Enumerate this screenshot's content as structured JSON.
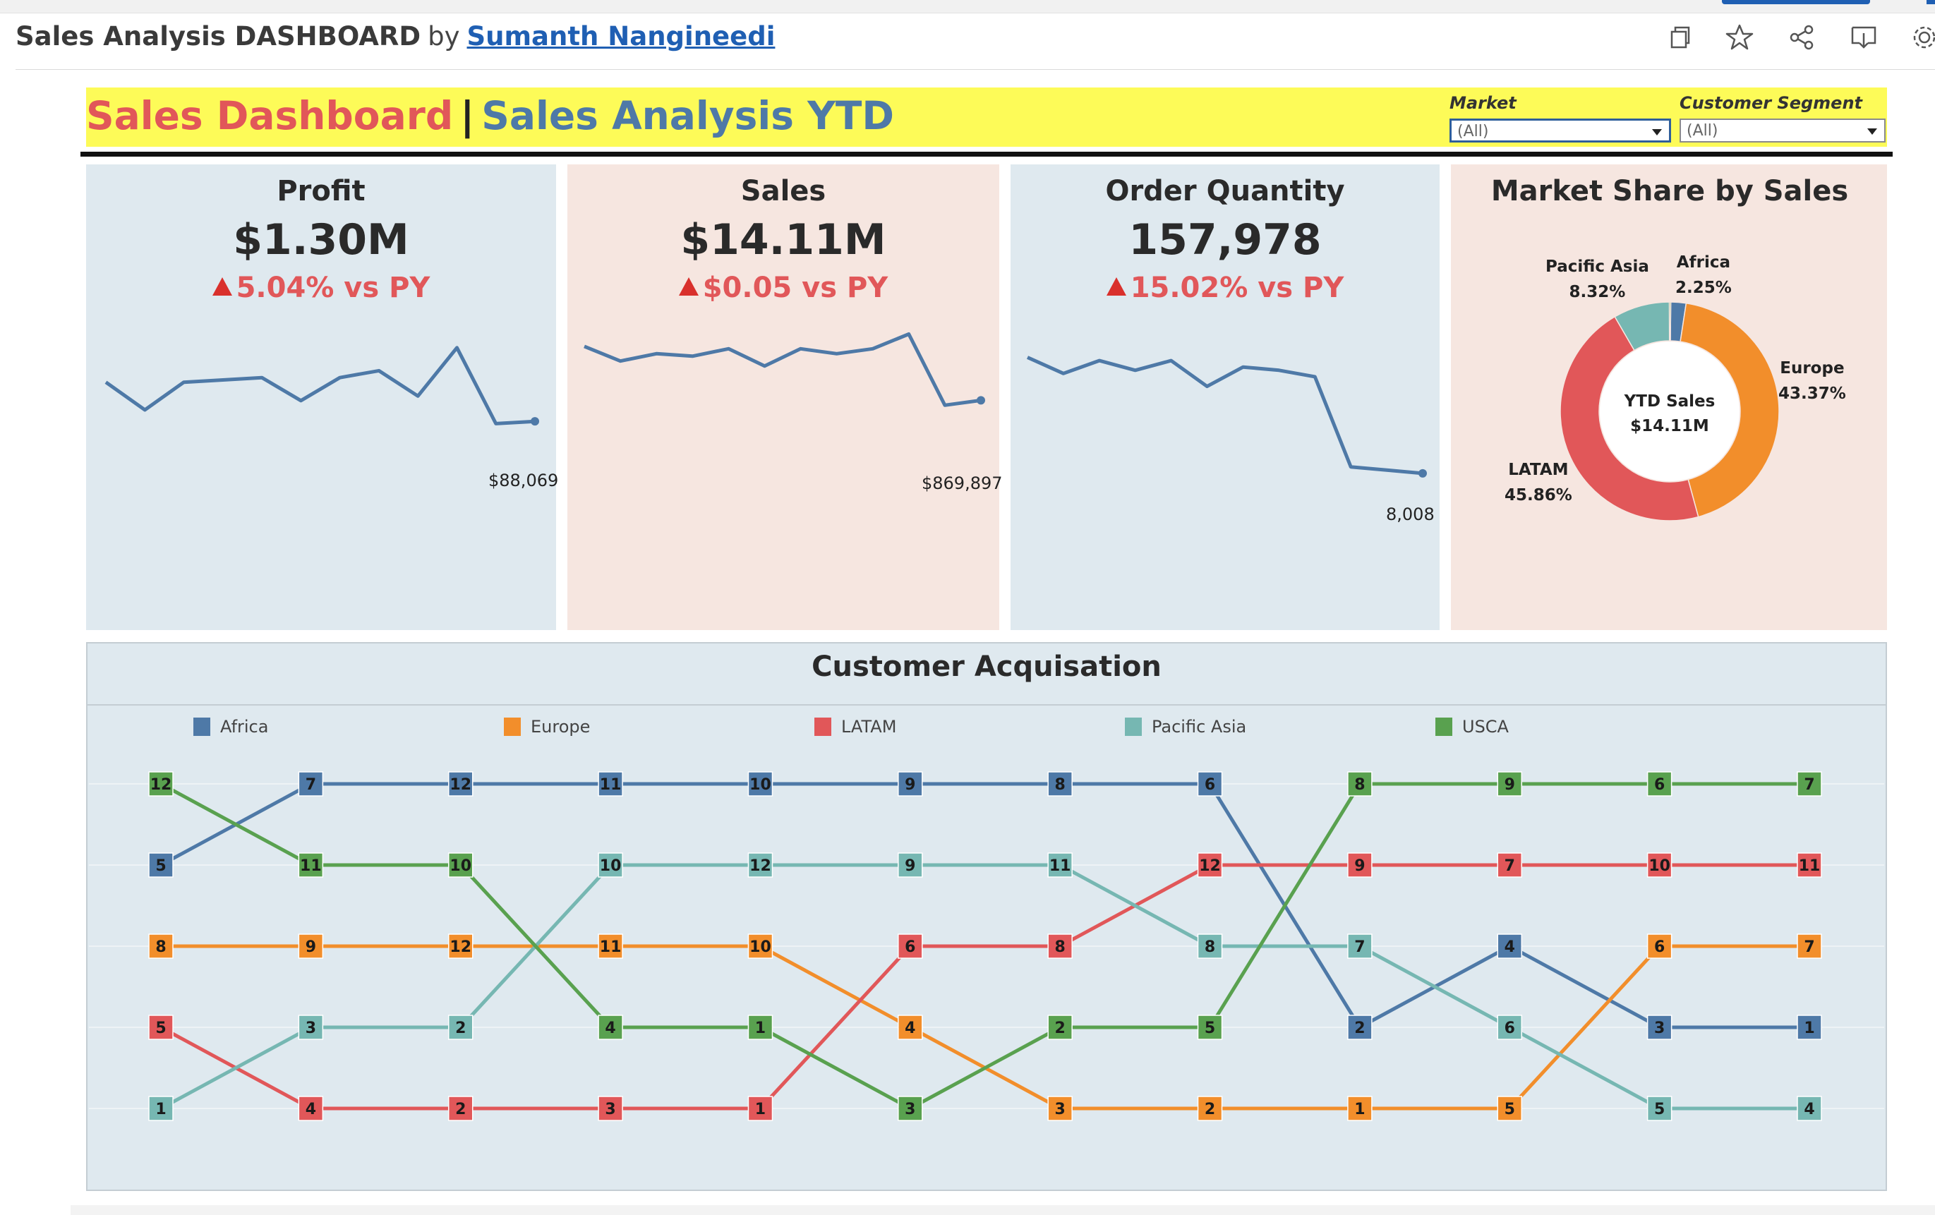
{
  "header": {
    "title": "Sales Analysis DASHBOARD",
    "by": "by",
    "author": "Sumanth Nangineedi",
    "icons": [
      "copy-icon",
      "star-icon",
      "share-icon",
      "download-icon",
      "settings-icon"
    ]
  },
  "banner": {
    "title_part1": "Sales Dashboard",
    "separator": "|",
    "title_part2": "Sales Analysis YTD",
    "filters": [
      {
        "label": "Market",
        "value": "(All)"
      },
      {
        "label": "Customer Segment",
        "value": "(All)"
      }
    ]
  },
  "colors": {
    "africa": "#4e79a7",
    "europe": "#f28e2b",
    "latam": "#e15759",
    "pacific_asia": "#76b7b2",
    "usca": "#59a14f",
    "banner_bg": "#fdfb58",
    "card_blue": "#dfe9ef",
    "card_peach": "#f6e6e0"
  },
  "kpis": [
    {
      "title": "Profit",
      "value": "$1.30M",
      "delta": "5.04% vs PY",
      "last_label": "$88,069",
      "trend": [
        62,
        56,
        62,
        62.5,
        63,
        58,
        63,
        64.5,
        59,
        69.5,
        53,
        53.5
      ]
    },
    {
      "title": "Sales",
      "value": "$14.11M",
      "delta": "$0.05 vs PY",
      "last_label": "$869,897",
      "trend": [
        70,
        67,
        68.5,
        68,
        69.5,
        66,
        69.5,
        68.5,
        69.5,
        72.5,
        58,
        59
      ]
    },
    {
      "title": "Order Quantity",
      "value": "157,978",
      "delta": "15.02% vs PY",
      "last_label": "8,008",
      "trend": [
        69,
        66.5,
        68.5,
        67,
        68.5,
        64.5,
        67.5,
        67,
        66,
        52,
        51.5,
        51
      ]
    }
  ],
  "market_share": {
    "title": "Market Share by Sales",
    "center_line1": "YTD Sales",
    "center_line2": "$14.11M",
    "slices": [
      {
        "name": "Africa",
        "pct_label": "2.25%",
        "value": 2.25,
        "color": "#4e79a7"
      },
      {
        "name": "Europe",
        "pct_label": "43.37%",
        "value": 43.37,
        "color": "#f28e2b"
      },
      {
        "name": "LATAM",
        "pct_label": "45.86%",
        "value": 45.86,
        "color": "#e15759"
      },
      {
        "name": "Pacific Asia",
        "pct_label": "8.32%",
        "value": 8.32,
        "color": "#76b7b2"
      },
      {
        "name": "USCA",
        "pct_label": "",
        "value": 0.2,
        "color": "#59a14f"
      }
    ]
  },
  "chart_data": {
    "type": "line",
    "title": "Customer Acquisation",
    "legend": [
      "Africa",
      "Europe",
      "LATAM",
      "Pacific Asia",
      "USCA"
    ],
    "x": [
      1,
      2,
      3,
      4,
      5,
      6,
      7,
      8,
      9,
      10,
      11,
      12
    ],
    "rank_levels": 5,
    "series": [
      {
        "name": "Africa",
        "color": "#4e79a7",
        "rank": [
          2,
          1,
          1,
          1,
          1,
          1,
          1,
          1,
          4,
          3,
          4,
          4
        ],
        "labels": [
          5,
          7,
          12,
          11,
          10,
          9,
          8,
          6,
          2,
          4,
          3,
          1
        ]
      },
      {
        "name": "Europe",
        "color": "#f28e2b",
        "rank": [
          3,
          3,
          3,
          3,
          3,
          4,
          5,
          5,
          5,
          5,
          3,
          3
        ],
        "labels": [
          8,
          9,
          12,
          11,
          10,
          4,
          3,
          2,
          1,
          5,
          6,
          7
        ]
      },
      {
        "name": "LATAM",
        "color": "#e15759",
        "rank": [
          4,
          5,
          5,
          5,
          5,
          3,
          3,
          2,
          2,
          2,
          2,
          2
        ],
        "labels": [
          5,
          4,
          2,
          3,
          1,
          6,
          8,
          12,
          9,
          7,
          10,
          11
        ]
      },
      {
        "name": "Pacific Asia",
        "color": "#76b7b2",
        "rank": [
          5,
          4,
          4,
          2,
          2,
          2,
          2,
          3,
          3,
          4,
          5,
          5
        ],
        "labels": [
          1,
          3,
          2,
          10,
          12,
          9,
          11,
          8,
          7,
          6,
          5,
          4
        ]
      },
      {
        "name": "USCA",
        "color": "#59a14f",
        "rank": [
          1,
          2,
          2,
          4,
          4,
          5,
          4,
          4,
          1,
          1,
          1,
          1
        ],
        "labels": [
          12,
          11,
          10,
          4,
          1,
          3,
          2,
          5,
          8,
          9,
          6,
          7
        ]
      }
    ]
  }
}
